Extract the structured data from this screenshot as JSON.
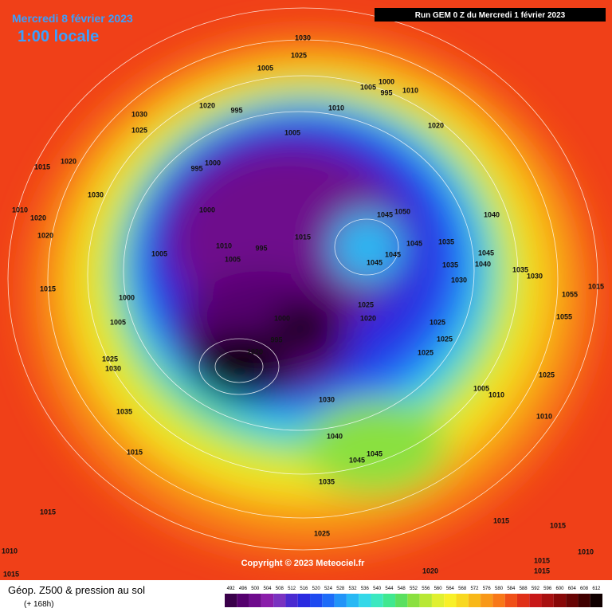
{
  "header": {
    "date": "Mercredi 8 février 2023",
    "time": "1:00 locale",
    "run": "Run GEM 0 Z du Mercredi 1 février 2023"
  },
  "copyright": "Copyright © 2023 Meteociel.fr",
  "legend": {
    "title": "Géop. Z500 & pression au sol",
    "lead": "(+ 168h)",
    "scale": [
      492,
      496,
      500,
      504,
      508,
      512,
      516,
      520,
      524,
      528,
      532,
      536,
      540,
      544,
      548,
      552,
      556,
      560,
      564,
      568,
      572,
      576,
      580,
      584,
      588,
      592,
      596,
      600,
      604,
      608,
      612
    ],
    "colors": [
      "#3a004a",
      "#55006e",
      "#6e0a8c",
      "#8a1eaa",
      "#7a32c0",
      "#4a2ad0",
      "#2a2ae0",
      "#1e4af0",
      "#1e6cf8",
      "#2294f8",
      "#28b8f4",
      "#34d8e8",
      "#3ce8c0",
      "#40e890",
      "#5ae060",
      "#8ae040",
      "#b8e834",
      "#e0f030",
      "#f8f028",
      "#f8d820",
      "#f8b818",
      "#f89818",
      "#f87818",
      "#f05018",
      "#e03018",
      "#c81818",
      "#a81010",
      "#880808",
      "#680404",
      "#400000",
      "#100000"
    ]
  },
  "isobars": [
    "1030",
    "1025",
    "1005",
    "1005",
    "1000",
    "995",
    "1010",
    "1010",
    "1020",
    "995",
    "1030",
    "1025",
    "1020",
    "1005",
    "1015",
    "1020",
    "1000",
    "995",
    "1030",
    "1010",
    "1020",
    "1000",
    "1045",
    "1050",
    "1040",
    "1020",
    "1015",
    "1045",
    "1035",
    "1005",
    "1010",
    "995",
    "1005",
    "1045",
    "1045",
    "1035",
    "1040",
    "1045",
    "1030",
    "1035",
    "1030",
    "1015",
    "1015",
    "1000",
    "1055",
    "1025",
    "1000",
    "1020",
    "1055",
    "1005",
    "1025",
    "1025",
    "995",
    "1020",
    "1025",
    "1025",
    "1030",
    "1025",
    "1005",
    "1010",
    "1030",
    "1035",
    "1010",
    "1040",
    "1045",
    "1045",
    "1015",
    "1035",
    "1015",
    "1015",
    "1025",
    "1015",
    "1010",
    "1010",
    "1015",
    "1015",
    "1015",
    "1020"
  ]
}
